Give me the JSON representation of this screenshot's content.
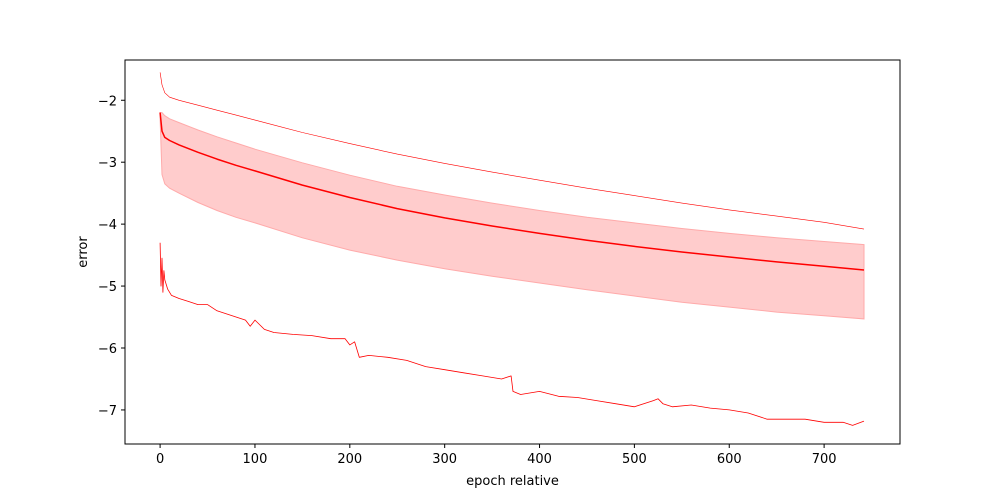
{
  "chart_data": {
    "type": "line",
    "title": "",
    "xlabel": "epoch relative",
    "ylabel": "error",
    "xlim": [
      -37,
      780
    ],
    "ylim": [
      -7.55,
      -1.35
    ],
    "xticks": [
      0,
      100,
      200,
      300,
      400,
      500,
      600,
      700
    ],
    "yticks": [
      -2,
      -3,
      -4,
      -5,
      -6,
      -7
    ],
    "x_tick_labels": [
      "0",
      "100",
      "200",
      "300",
      "400",
      "500",
      "600",
      "700"
    ],
    "y_tick_labels": [
      "−2",
      "−3",
      "−4",
      "−5",
      "−6",
      "−7"
    ],
    "grid": false,
    "legend": "none",
    "colors": {
      "line": "#ff0000",
      "band": "#ffcccc",
      "band_edge": "#ffaaaa",
      "axes": "#000000"
    },
    "series": [
      {
        "role": "upper-thin",
        "x": [
          0,
          2,
          5,
          10,
          20,
          40,
          60,
          80,
          100,
          150,
          200,
          250,
          300,
          350,
          400,
          450,
          500,
          550,
          600,
          650,
          700,
          742
        ],
        "values": [
          -1.55,
          -1.75,
          -1.88,
          -1.95,
          -2.0,
          -2.08,
          -2.16,
          -2.24,
          -2.32,
          -2.52,
          -2.7,
          -2.87,
          -3.02,
          -3.16,
          -3.29,
          -3.42,
          -3.54,
          -3.66,
          -3.77,
          -3.87,
          -3.97,
          -4.08
        ]
      },
      {
        "role": "mean",
        "x": [
          0,
          2,
          5,
          10,
          20,
          40,
          60,
          80,
          100,
          150,
          200,
          250,
          300,
          350,
          400,
          450,
          500,
          550,
          600,
          650,
          700,
          742
        ],
        "values": [
          -2.2,
          -2.5,
          -2.6,
          -2.65,
          -2.72,
          -2.84,
          -2.95,
          -3.05,
          -3.14,
          -3.37,
          -3.57,
          -3.75,
          -3.9,
          -4.03,
          -4.15,
          -4.26,
          -4.36,
          -4.45,
          -4.53,
          -4.61,
          -4.68,
          -4.74
        ]
      },
      {
        "role": "band-upper",
        "x": [
          0,
          2,
          5,
          10,
          20,
          40,
          60,
          80,
          100,
          150,
          200,
          250,
          300,
          350,
          400,
          450,
          500,
          550,
          600,
          650,
          700,
          742
        ],
        "values": [
          -2.2,
          -2.2,
          -2.25,
          -2.3,
          -2.36,
          -2.48,
          -2.59,
          -2.69,
          -2.79,
          -3.01,
          -3.21,
          -3.39,
          -3.53,
          -3.66,
          -3.78,
          -3.89,
          -3.98,
          -4.07,
          -4.15,
          -4.22,
          -4.28,
          -4.33
        ]
      },
      {
        "role": "band-lower",
        "x": [
          0,
          2,
          5,
          10,
          20,
          40,
          60,
          80,
          100,
          150,
          200,
          250,
          300,
          350,
          400,
          450,
          500,
          550,
          600,
          650,
          700,
          742
        ],
        "values": [
          -2.3,
          -3.2,
          -3.35,
          -3.42,
          -3.5,
          -3.65,
          -3.78,
          -3.89,
          -3.98,
          -4.22,
          -4.42,
          -4.58,
          -4.72,
          -4.84,
          -4.95,
          -5.06,
          -5.16,
          -5.26,
          -5.34,
          -5.42,
          -5.48,
          -5.53
        ]
      },
      {
        "role": "lower-noisy",
        "x": [
          0,
          1,
          2,
          3,
          4,
          5,
          8,
          12,
          20,
          30,
          40,
          50,
          60,
          70,
          80,
          90,
          95,
          100,
          110,
          120,
          140,
          160,
          180,
          195,
          200,
          205,
          210,
          220,
          240,
          260,
          280,
          300,
          320,
          340,
          360,
          370,
          372,
          380,
          400,
          420,
          440,
          460,
          480,
          500,
          520,
          525,
          530,
          540,
          560,
          580,
          600,
          620,
          640,
          660,
          680,
          700,
          720,
          730,
          742
        ],
        "values": [
          -4.3,
          -5.0,
          -4.55,
          -5.1,
          -4.75,
          -4.9,
          -5.05,
          -5.15,
          -5.2,
          -5.25,
          -5.3,
          -5.3,
          -5.4,
          -5.45,
          -5.5,
          -5.55,
          -5.65,
          -5.55,
          -5.7,
          -5.75,
          -5.78,
          -5.8,
          -5.85,
          -5.85,
          -5.95,
          -5.9,
          -6.15,
          -6.12,
          -6.15,
          -6.2,
          -6.3,
          -6.35,
          -6.4,
          -6.45,
          -6.5,
          -6.45,
          -6.7,
          -6.75,
          -6.7,
          -6.78,
          -6.8,
          -6.85,
          -6.9,
          -6.95,
          -6.85,
          -6.82,
          -6.9,
          -6.95,
          -6.92,
          -6.97,
          -7.0,
          -7.05,
          -7.15,
          -7.15,
          -7.15,
          -7.2,
          -7.2,
          -7.25,
          -7.18
        ]
      }
    ]
  }
}
